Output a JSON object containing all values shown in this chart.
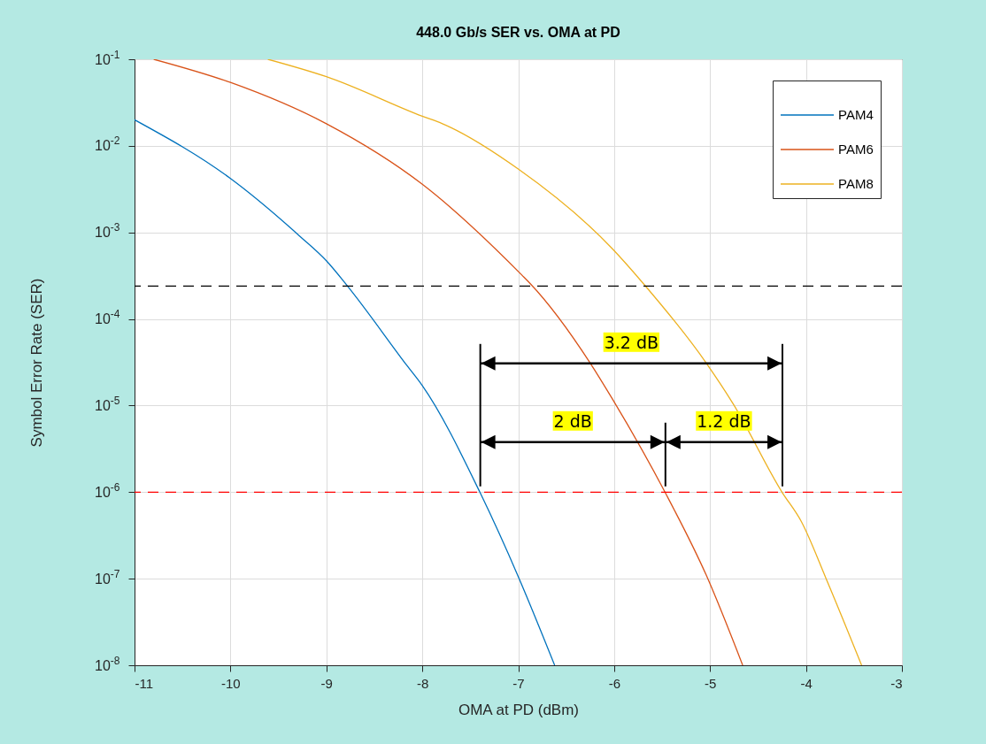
{
  "chart_data": {
    "type": "line",
    "title": "448.0 Gb/s SER vs. OMA at PD",
    "xlabel": "OMA at PD (dBm)",
    "ylabel": "Symbol Error Rate (SER)",
    "log": "y",
    "grid": true,
    "legend": "top right",
    "line_style": "solid",
    "xlim": [
      -11,
      -3
    ],
    "xticks": [
      -11,
      -10,
      -9,
      -8,
      -7,
      -6,
      -5,
      -4,
      -3
    ],
    "ylim": [
      1e-08,
      0.1
    ],
    "yticks": [
      {
        "value": 1e-08,
        "label": "10$^{-8}$"
      },
      {
        "value": 1e-07,
        "label": "10$^{-7}$"
      },
      {
        "value": 1e-06,
        "label": "10$^{-6}$"
      },
      {
        "value": 1e-05,
        "label": "10$^{-5}$"
      },
      {
        "value": 0.0001,
        "label": "10$^{-4}$"
      },
      {
        "value": 0.001,
        "label": "10$^{-3}$"
      },
      {
        "value": 0.01,
        "label": "10$^{-2}$"
      },
      {
        "value": 0.1,
        "label": "10$^{-1}$"
      }
    ],
    "series": [
      {
        "name": "PAM4",
        "color": "#0072bd",
        "x": [
          -11,
          -10,
          -9.27,
          -9,
          -8.78,
          -8.16,
          -8,
          -7.4,
          -6.99,
          -6.62
        ],
        "values": [
          0.02,
          0.0042,
          0.00089,
          0.00047,
          0.00024,
          2.9e-05,
          1.7e-05,
          1e-06,
          1e-07,
          1e-08
        ]
      },
      {
        "name": "PAM6",
        "color": "#d95319",
        "x": [
          -10.8,
          -10,
          -9,
          -8,
          -6.96,
          -6.88,
          -6.25,
          -6.02,
          -5.47,
          -5.04,
          -4.66
        ],
        "values": [
          0.1,
          0.054,
          0.018,
          0.0036,
          0.00032,
          0.00026,
          3.1e-05,
          1.2e-05,
          1e-06,
          1.1e-07,
          1e-08
        ]
      },
      {
        "name": "PAM8",
        "color": "#edb120",
        "x": [
          -9.61,
          -9,
          -8,
          -7.79,
          -7,
          -6.02,
          -5.7,
          -5.04,
          -4.76,
          -4.25,
          -4.05,
          -3.79,
          -3.42
        ],
        "values": [
          0.1,
          0.063,
          0.022,
          0.018,
          0.0054,
          0.00065,
          0.00026,
          3.1e-05,
          1.05e-05,
          1e-06,
          4.6e-07,
          1e-07,
          1e-08
        ]
      }
    ],
    "ref_lines": [
      {
        "axis": "y",
        "value": 0.00024,
        "label": null,
        "color": "#000000",
        "line_style": "dashed"
      },
      {
        "axis": "y",
        "value": 1e-06,
        "label": null,
        "color": "#ff0000",
        "line_style": "dashed"
      }
    ],
    "annotations": [
      "3.2 dB",
      "2 dB",
      "1.2 dB"
    ]
  }
}
